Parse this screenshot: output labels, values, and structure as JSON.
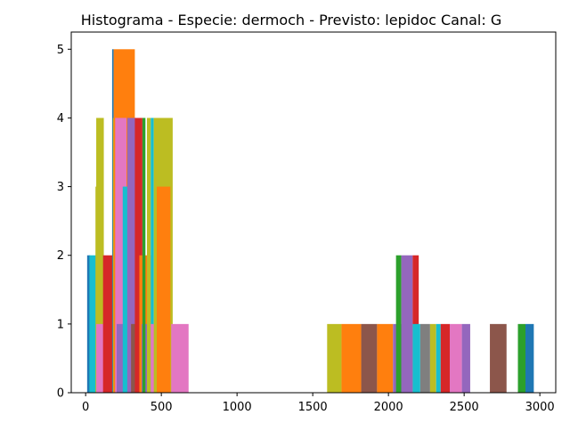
{
  "chart_data": {
    "type": "bar",
    "title": "Histograma - Especie: dermoch - Previsto: lepidoc Canal: G",
    "xlabel": "",
    "ylabel": "",
    "xlim": [
      -95,
      3105
    ],
    "ylim": [
      0,
      5.25
    ],
    "x_ticks": [
      0,
      500,
      1000,
      1500,
      2000,
      2500,
      3000
    ],
    "y_ticks": [
      0,
      1,
      2,
      3,
      4,
      5
    ],
    "grid": false,
    "legend": "none",
    "bars": [
      {
        "x0": 10,
        "x1": 30,
        "count": 2,
        "color": "#1f77b4"
      },
      {
        "x0": 25,
        "x1": 70,
        "count": 2,
        "color": "#17becf"
      },
      {
        "x0": 65,
        "x1": 75,
        "count": 3,
        "color": "#bcbd22"
      },
      {
        "x0": 70,
        "x1": 120,
        "count": 4,
        "color": "#bcbd22"
      },
      {
        "x0": 70,
        "x1": 120,
        "count": 1,
        "color": "#e377c2"
      },
      {
        "x0": 115,
        "x1": 195,
        "count": 2,
        "color": "#d62728"
      },
      {
        "x0": 175,
        "x1": 185,
        "count": 5,
        "color": "#1f77b4"
      },
      {
        "x0": 180,
        "x1": 215,
        "count": 4,
        "color": "#bcbd22"
      },
      {
        "x0": 185,
        "x1": 325,
        "count": 5,
        "color": "#ff7f0e"
      },
      {
        "x0": 195,
        "x1": 270,
        "count": 4,
        "color": "#e377c2"
      },
      {
        "x0": 205,
        "x1": 265,
        "count": 1,
        "color": "#9467bd"
      },
      {
        "x0": 245,
        "x1": 340,
        "count": 3,
        "color": "#17becf"
      },
      {
        "x0": 275,
        "x1": 330,
        "count": 4,
        "color": "#9467bd"
      },
      {
        "x0": 300,
        "x1": 355,
        "count": 1,
        "color": "#8c564b"
      },
      {
        "x0": 325,
        "x1": 375,
        "count": 4,
        "color": "#d62728"
      },
      {
        "x0": 355,
        "x1": 430,
        "count": 2,
        "color": "#ff7f0e"
      },
      {
        "x0": 370,
        "x1": 405,
        "count": 1,
        "color": "#9467bd"
      },
      {
        "x0": 375,
        "x1": 395,
        "count": 4,
        "color": "#2ca02c"
      },
      {
        "x0": 405,
        "x1": 430,
        "count": 4,
        "color": "#bcbd22"
      },
      {
        "x0": 430,
        "x1": 450,
        "count": 4,
        "color": "#17becf"
      },
      {
        "x0": 430,
        "x1": 475,
        "count": 1,
        "color": "#e377c2"
      },
      {
        "x0": 450,
        "x1": 575,
        "count": 4,
        "color": "#bcbd22"
      },
      {
        "x0": 485,
        "x1": 495,
        "count": 1,
        "color": "#1f77b4"
      },
      {
        "x0": 470,
        "x1": 560,
        "count": 3,
        "color": "#ff7f0e"
      },
      {
        "x0": 565,
        "x1": 680,
        "count": 1,
        "color": "#e377c2"
      },
      {
        "x0": 1595,
        "x1": 1690,
        "count": 1,
        "color": "#bcbd22"
      },
      {
        "x0": 1690,
        "x1": 1820,
        "count": 1,
        "color": "#ff7f0e"
      },
      {
        "x0": 1820,
        "x1": 1925,
        "count": 1,
        "color": "#8c564b"
      },
      {
        "x0": 1925,
        "x1": 2030,
        "count": 1,
        "color": "#ff7f0e"
      },
      {
        "x0": 2030,
        "x1": 2100,
        "count": 1,
        "color": "#9467bd"
      },
      {
        "x0": 2050,
        "x1": 2085,
        "count": 2,
        "color": "#2ca02c"
      },
      {
        "x0": 2085,
        "x1": 2160,
        "count": 2,
        "color": "#9467bd"
      },
      {
        "x0": 2160,
        "x1": 2200,
        "count": 2,
        "color": "#d62728"
      },
      {
        "x0": 2160,
        "x1": 2210,
        "count": 1,
        "color": "#17becf"
      },
      {
        "x0": 2210,
        "x1": 2275,
        "count": 1,
        "color": "#7f7f7f"
      },
      {
        "x0": 2275,
        "x1": 2315,
        "count": 1,
        "color": "#bcbd22"
      },
      {
        "x0": 2315,
        "x1": 2345,
        "count": 1,
        "color": "#17becf"
      },
      {
        "x0": 2345,
        "x1": 2405,
        "count": 1,
        "color": "#d62728"
      },
      {
        "x0": 2405,
        "x1": 2485,
        "count": 1,
        "color": "#e377c2"
      },
      {
        "x0": 2485,
        "x1": 2540,
        "count": 1,
        "color": "#9467bd"
      },
      {
        "x0": 2670,
        "x1": 2780,
        "count": 1,
        "color": "#8c564b"
      },
      {
        "x0": 2855,
        "x1": 2905,
        "count": 1,
        "color": "#2ca02c"
      },
      {
        "x0": 2905,
        "x1": 2960,
        "count": 1,
        "color": "#1f77b4"
      }
    ]
  }
}
